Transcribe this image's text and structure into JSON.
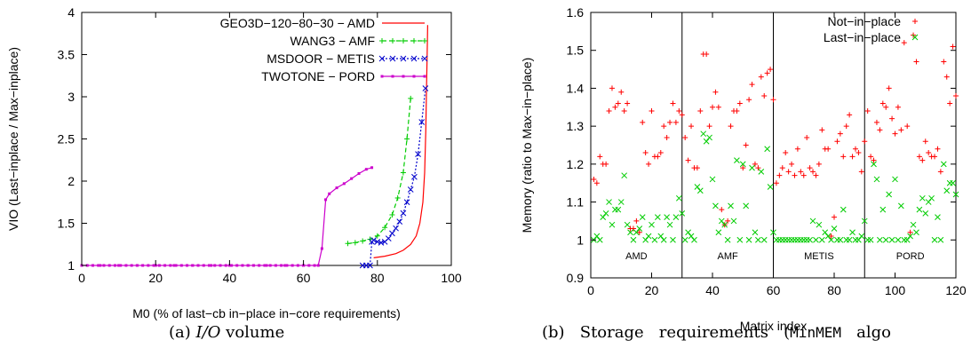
{
  "chart_data": [
    {
      "type": "line",
      "panel": "a",
      "xlabel": "M0 (% of last−cb in−place in−core requirements)",
      "ylabel": "VIO (Last−inplace / Max−inplace)",
      "xlim": [
        0,
        100
      ],
      "ylim": [
        1,
        4
      ],
      "x_ticks": [
        "0",
        "20",
        "40",
        "60",
        "80",
        "100"
      ],
      "y_ticks": [
        "1",
        "1.5",
        "2",
        "2.5",
        "3",
        "3.5",
        "4"
      ],
      "legend_position": "top-right",
      "grid": false,
      "series": [
        {
          "name": "GEO3D−120−80−30 − AMD",
          "color": "#ff0000",
          "style": "solid",
          "marker": "none",
          "x": [
            79,
            82,
            85,
            87,
            89,
            90.5,
            91.5,
            92.3,
            92.8,
            93.1,
            93.3,
            93.5,
            93.6
          ],
          "y": [
            1.09,
            1.11,
            1.14,
            1.18,
            1.25,
            1.35,
            1.5,
            1.75,
            2.1,
            2.6,
            3.1,
            3.6,
            3.85
          ]
        },
        {
          "name": "WANG3 − AMF",
          "color": "#00cc00",
          "style": "dashed",
          "marker": "plus",
          "x": [
            72,
            74,
            76,
            78,
            80,
            82,
            84,
            85.5,
            87,
            88,
            89
          ],
          "y": [
            1.26,
            1.27,
            1.29,
            1.31,
            1.35,
            1.45,
            1.6,
            1.8,
            2.1,
            2.5,
            2.98
          ]
        },
        {
          "name": "MSDOOR − METIS",
          "color": "#0000cc",
          "style": "dotted",
          "marker": "x",
          "x": [
            76,
            77,
            78,
            78.5,
            79,
            80,
            81,
            82,
            83,
            84,
            85,
            86,
            87,
            88,
            89,
            90,
            91,
            92,
            93
          ],
          "y": [
            1.0,
            1.0,
            1.0,
            1.28,
            1.3,
            1.28,
            1.27,
            1.28,
            1.32,
            1.38,
            1.44,
            1.52,
            1.62,
            1.75,
            1.9,
            2.05,
            2.32,
            2.7,
            3.1
          ]
        },
        {
          "name": "TWOTONE − PORD",
          "color": "#cc00cc",
          "style": "solid",
          "marker": "square",
          "x": [
            0,
            5,
            10,
            15,
            20,
            25,
            30,
            35,
            40,
            45,
            50,
            55,
            60,
            64,
            65,
            66,
            67,
            69,
            71,
            73,
            75,
            77,
            78.5
          ],
          "y": [
            1,
            1,
            1,
            1,
            1,
            1,
            1,
            1,
            1,
            1,
            1,
            1,
            1,
            1,
            1.2,
            1.78,
            1.85,
            1.92,
            1.97,
            2.03,
            2.09,
            2.14,
            2.16
          ]
        }
      ]
    },
    {
      "type": "scatter",
      "panel": "b",
      "xlabel": "Matrix index",
      "ylabel": "Memory (ratio to Max−in−place)",
      "xlim": [
        0,
        120
      ],
      "ylim": [
        0.9,
        1.6
      ],
      "x_ticks": [
        "0",
        "20",
        "40",
        "60",
        "80",
        "100",
        "120"
      ],
      "y_ticks": [
        "0.9",
        "1",
        "1.1",
        "1.2",
        "1.3",
        "1.4",
        "1.5",
        "1.6"
      ],
      "legend_position": "top-right",
      "grid": false,
      "separators_x": [
        30,
        60,
        90
      ],
      "groups": [
        {
          "label": "AMD",
          "x": 15
        },
        {
          "label": "AMF",
          "x": 45
        },
        {
          "label": "METIS",
          "x": 75
        },
        {
          "label": "PORD",
          "x": 105
        }
      ],
      "series": [
        {
          "name": "Not−in−place",
          "color": "#ff0000",
          "marker": "plus",
          "x": [
            1,
            2,
            3,
            4,
            5,
            6,
            7,
            8,
            9,
            10,
            11,
            12,
            13,
            14,
            15,
            16,
            17,
            18,
            19,
            20,
            21,
            22,
            23,
            24,
            25,
            26,
            27,
            28,
            29,
            30,
            31,
            32,
            33,
            34,
            35,
            36,
            37,
            38,
            39,
            40,
            41,
            42,
            43,
            44,
            45,
            46,
            47,
            48,
            49,
            50,
            51,
            52,
            53,
            54,
            55,
            56,
            57,
            58,
            59,
            60,
            61,
            62,
            63,
            64,
            65,
            66,
            67,
            68,
            69,
            70,
            71,
            72,
            73,
            74,
            75,
            76,
            77,
            78,
            79,
            80,
            81,
            82,
            83,
            84,
            85,
            86,
            87,
            88,
            89,
            90,
            91,
            92,
            93,
            94,
            95,
            96,
            97,
            98,
            99,
            100,
            101,
            102,
            103,
            104,
            105,
            106,
            107,
            108,
            109,
            110,
            111,
            112,
            113,
            114,
            115,
            116,
            117,
            118,
            119,
            120
          ],
          "y": [
            1.16,
            1.15,
            1.22,
            1.2,
            1.2,
            1.34,
            1.4,
            1.35,
            1.36,
            1.39,
            1.34,
            1.36,
            1.03,
            1.03,
            1.05,
            1.02,
            1.31,
            1.23,
            1.2,
            1.34,
            1.22,
            1.22,
            1.23,
            1.3,
            1.27,
            1.31,
            1.36,
            1.31,
            1.34,
            1.33,
            1.27,
            1.21,
            1.3,
            1.19,
            1.19,
            1.34,
            1.49,
            1.49,
            1.3,
            1.35,
            1.39,
            1.35,
            1.08,
            1.04,
            1.05,
            1.3,
            1.34,
            1.34,
            1.36,
            1.19,
            1.25,
            1.37,
            1.41,
            1.2,
            1.19,
            1.43,
            1.38,
            1.44,
            1.45,
            1.37,
            1.15,
            1.17,
            1.19,
            1.23,
            1.18,
            1.2,
            1.17,
            1.24,
            1.18,
            1.17,
            1.27,
            1.19,
            1.18,
            1.17,
            1.2,
            1.29,
            1.24,
            1.24,
            1.01,
            1.06,
            1.26,
            1.28,
            1.22,
            1.3,
            1.33,
            1.22,
            1.24,
            1.23,
            1.18,
            1.26,
            1.34,
            1.22,
            1.21,
            1.31,
            1.29,
            1.36,
            1.35,
            1.4,
            1.32,
            1.28,
            1.35,
            1.29,
            1.52,
            1.3,
            1.02,
            1.54,
            1.47,
            1.22,
            1.21,
            1.26,
            1.23,
            1.22,
            1.22,
            1.24,
            1.18,
            1.47,
            1.43,
            1.36,
            1.51,
            1.38
          ]
        },
        {
          "name": "Last−in−place",
          "color": "#00cc00",
          "marker": "x",
          "x": [
            1,
            2,
            3,
            4,
            5,
            6,
            7,
            8,
            9,
            10,
            11,
            12,
            13,
            14,
            15,
            16,
            17,
            18,
            19,
            20,
            21,
            22,
            23,
            24,
            25,
            26,
            27,
            28,
            29,
            30,
            31,
            32,
            33,
            34,
            35,
            36,
            37,
            38,
            39,
            40,
            41,
            42,
            43,
            44,
            45,
            46,
            47,
            48,
            49,
            50,
            51,
            52,
            53,
            54,
            55,
            56,
            57,
            58,
            59,
            60,
            61,
            62,
            63,
            64,
            65,
            66,
            67,
            68,
            69,
            70,
            71,
            72,
            73,
            74,
            75,
            76,
            77,
            78,
            79,
            80,
            81,
            82,
            83,
            84,
            85,
            86,
            87,
            88,
            89,
            90,
            91,
            92,
            93,
            94,
            95,
            96,
            97,
            98,
            99,
            100,
            101,
            102,
            103,
            104,
            105,
            106,
            107,
            108,
            109,
            110,
            111,
            112,
            113,
            114,
            115,
            116,
            117,
            118,
            119,
            120
          ],
          "y": [
            1.0,
            1.01,
            1.0,
            1.06,
            1.07,
            1.1,
            1.04,
            1.08,
            1.08,
            1.1,
            1.17,
            1.04,
            1.02,
            1.0,
            1.02,
            1.03,
            1.06,
            1.0,
            1.01,
            1.04,
            1.0,
            1.06,
            1.01,
            1.0,
            1.06,
            1.04,
            1.0,
            1.06,
            1.11,
            1.07,
            1.0,
            1.02,
            1.01,
            1.0,
            1.14,
            1.13,
            1.28,
            1.26,
            1.27,
            1.16,
            1.09,
            1.02,
            1.05,
            1.04,
            1.0,
            1.09,
            1.05,
            1.21,
            1.0,
            1.2,
            1.09,
            1.0,
            1.19,
            1.02,
            1.0,
            1.18,
            1.0,
            1.24,
            1.14,
            1.02,
            1.0,
            1.0,
            1.0,
            1.0,
            1.0,
            1.0,
            1.0,
            1.0,
            1.0,
            1.0,
            1.0,
            1.0,
            1.05,
            1.0,
            1.04,
            1.0,
            1.02,
            1.01,
            1.0,
            1.03,
            1.0,
            1.0,
            1.08,
            1.0,
            1.0,
            1.02,
            1.0,
            1.0,
            1.01,
            1.05,
            1.0,
            1.0,
            1.2,
            1.16,
            1.0,
            1.08,
            1.0,
            1.12,
            1.0,
            1.16,
            1.0,
            1.09,
            1.0,
            1.0,
            1.01,
            1.04,
            1.02,
            1.08,
            1.11,
            1.07,
            1.1,
            1.11,
            1.0,
            1.06,
            1.0,
            1.2,
            1.13,
            1.15,
            1.15,
            1.12
          ]
        }
      ]
    }
  ],
  "captions": {
    "a_prefix": "(a) ",
    "a_italic": "I/O",
    "a_suffix": " volume",
    "b_prefix": "(b)   Storage   requirements   (",
    "b_mono": "MinMEM",
    "b_suffix": "   algo"
  }
}
